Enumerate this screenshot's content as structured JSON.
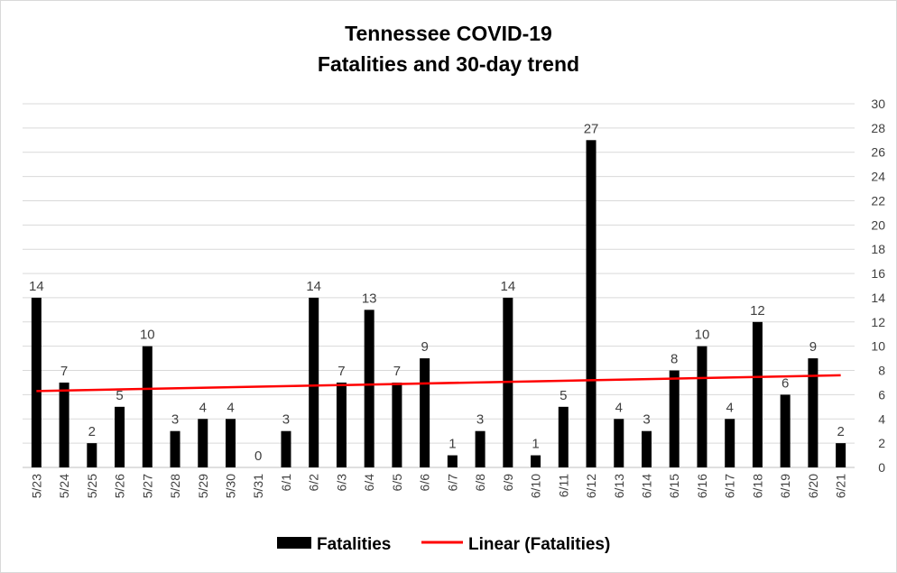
{
  "chart_data": {
    "type": "bar",
    "title": "Tennessee COVID-19",
    "subtitle": "Fatalities and 30-day trend",
    "categories": [
      "5/23",
      "5/24",
      "5/25",
      "5/26",
      "5/27",
      "5/28",
      "5/29",
      "5/30",
      "5/31",
      "6/1",
      "6/2",
      "6/3",
      "6/4",
      "6/5",
      "6/6",
      "6/7",
      "6/8",
      "6/9",
      "6/10",
      "6/11",
      "6/12",
      "6/13",
      "6/14",
      "6/15",
      "6/16",
      "6/17",
      "6/18",
      "6/19",
      "6/20",
      "6/21"
    ],
    "series": [
      {
        "name": "Fatalities",
        "type": "bar",
        "color": "#000000",
        "values": [
          14,
          7,
          2,
          5,
          10,
          3,
          4,
          4,
          0,
          3,
          14,
          7,
          13,
          7,
          9,
          1,
          3,
          14,
          1,
          5,
          27,
          4,
          3,
          8,
          10,
          4,
          12,
          6,
          9,
          2
        ]
      },
      {
        "name": "Linear (Fatalities)",
        "type": "trendline",
        "color": "#ff0000",
        "start": 6.3,
        "end": 7.6
      }
    ],
    "ylim": [
      0,
      30
    ],
    "yticks": [
      0,
      2,
      4,
      6,
      8,
      10,
      12,
      14,
      16,
      18,
      20,
      22,
      24,
      26,
      28,
      30
    ],
    "yaxis_position": "right",
    "grid": true,
    "data_labels": true,
    "legend_position": "bottom"
  }
}
